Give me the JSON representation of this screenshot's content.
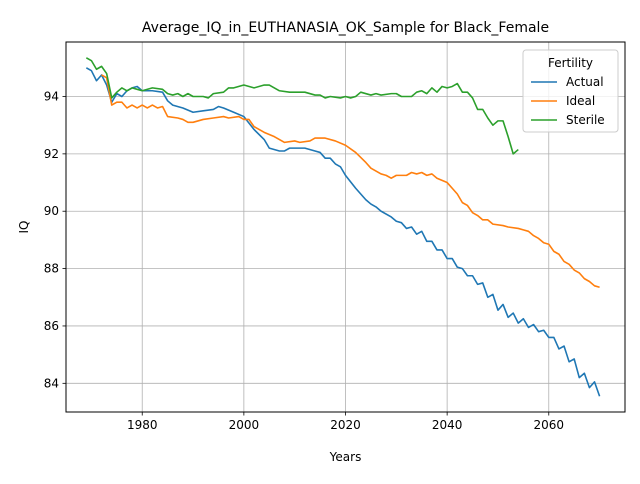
{
  "chart_data": {
    "type": "line",
    "title": "Average_IQ_in_EUTHANASIA_OK_Sample for Black_Female",
    "xlabel": "Years",
    "ylabel": "IQ",
    "xlim": [
      1965,
      2075
    ],
    "ylim": [
      83,
      95.9
    ],
    "xticks": [
      1980,
      2000,
      2020,
      2040,
      2060
    ],
    "yticks": [
      84,
      86,
      88,
      90,
      92,
      94
    ],
    "grid": true,
    "legend": {
      "title": "Fertility",
      "placement": "top-right"
    },
    "series": [
      {
        "name": "Actual",
        "color": "#1f77b4",
        "points": [
          [
            1969,
            95.0
          ],
          [
            1970,
            94.9
          ],
          [
            1971,
            94.55
          ],
          [
            1972,
            94.75
          ],
          [
            1973,
            94.4
          ],
          [
            1974,
            93.8
          ],
          [
            1975,
            94.1
          ],
          [
            1976,
            94.0
          ],
          [
            1977,
            94.2
          ],
          [
            1978,
            94.3
          ],
          [
            1979,
            94.35
          ],
          [
            1980,
            94.2
          ],
          [
            1982,
            94.2
          ],
          [
            1984,
            94.15
          ],
          [
            1985,
            93.85
          ],
          [
            1986,
            93.7
          ],
          [
            1988,
            93.6
          ],
          [
            1990,
            93.45
          ],
          [
            1992,
            93.5
          ],
          [
            1994,
            93.55
          ],
          [
            1995,
            93.65
          ],
          [
            1996,
            93.6
          ],
          [
            1998,
            93.45
          ],
          [
            2000,
            93.3
          ],
          [
            2002,
            92.85
          ],
          [
            2004,
            92.5
          ],
          [
            2005,
            92.2
          ],
          [
            2007,
            92.1
          ],
          [
            2008,
            92.1
          ],
          [
            2009,
            92.2
          ],
          [
            2012,
            92.2
          ],
          [
            2014,
            92.1
          ],
          [
            2015,
            92.05
          ],
          [
            2016,
            91.85
          ],
          [
            2017,
            91.85
          ],
          [
            2018,
            91.65
          ],
          [
            2019,
            91.55
          ],
          [
            2020,
            91.25
          ],
          [
            2022,
            90.8
          ],
          [
            2024,
            90.4
          ],
          [
            2025,
            90.25
          ],
          [
            2026,
            90.15
          ],
          [
            2027,
            90.0
          ],
          [
            2029,
            89.8
          ],
          [
            2030,
            89.65
          ],
          [
            2031,
            89.6
          ],
          [
            2032,
            89.4
          ],
          [
            2033,
            89.45
          ],
          [
            2034,
            89.2
          ],
          [
            2035,
            89.3
          ],
          [
            2036,
            88.95
          ],
          [
            2037,
            88.95
          ],
          [
            2038,
            88.65
          ],
          [
            2039,
            88.65
          ],
          [
            2040,
            88.35
          ],
          [
            2041,
            88.35
          ],
          [
            2042,
            88.05
          ],
          [
            2043,
            88.0
          ],
          [
            2044,
            87.75
          ],
          [
            2045,
            87.75
          ],
          [
            2046,
            87.45
          ],
          [
            2047,
            87.5
          ],
          [
            2048,
            87.0
          ],
          [
            2049,
            87.1
          ],
          [
            2050,
            86.55
          ],
          [
            2051,
            86.75
          ],
          [
            2052,
            86.3
          ],
          [
            2053,
            86.45
          ],
          [
            2054,
            86.1
          ],
          [
            2055,
            86.25
          ],
          [
            2056,
            85.95
          ],
          [
            2057,
            86.05
          ],
          [
            2058,
            85.8
          ],
          [
            2059,
            85.85
          ],
          [
            2060,
            85.6
          ],
          [
            2061,
            85.6
          ],
          [
            2062,
            85.2
          ],
          [
            2063,
            85.3
          ],
          [
            2064,
            84.75
          ],
          [
            2065,
            84.85
          ],
          [
            2066,
            84.2
          ],
          [
            2067,
            84.35
          ],
          [
            2068,
            83.85
          ],
          [
            2069,
            84.05
          ],
          [
            2070,
            83.55
          ]
        ]
      },
      {
        "name": "Ideal",
        "color": "#ff7f0e",
        "points": [
          [
            1972,
            94.75
          ],
          [
            1973,
            94.65
          ],
          [
            1974,
            93.7
          ],
          [
            1975,
            93.8
          ],
          [
            1976,
            93.8
          ],
          [
            1977,
            93.6
          ],
          [
            1978,
            93.7
          ],
          [
            1979,
            93.6
          ],
          [
            1980,
            93.7
          ],
          [
            1981,
            93.6
          ],
          [
            1982,
            93.7
          ],
          [
            1983,
            93.6
          ],
          [
            1984,
            93.65
          ],
          [
            1985,
            93.3
          ],
          [
            1987,
            93.25
          ],
          [
            1988,
            93.2
          ],
          [
            1989,
            93.1
          ],
          [
            1990,
            93.1
          ],
          [
            1992,
            93.2
          ],
          [
            1994,
            93.25
          ],
          [
            1996,
            93.3
          ],
          [
            1997,
            93.25
          ],
          [
            1999,
            93.3
          ],
          [
            2000,
            93.2
          ],
          [
            2001,
            93.2
          ],
          [
            2002,
            92.95
          ],
          [
            2004,
            92.75
          ],
          [
            2006,
            92.6
          ],
          [
            2007,
            92.5
          ],
          [
            2008,
            92.4
          ],
          [
            2010,
            92.45
          ],
          [
            2011,
            92.4
          ],
          [
            2013,
            92.45
          ],
          [
            2014,
            92.55
          ],
          [
            2016,
            92.55
          ],
          [
            2018,
            92.45
          ],
          [
            2020,
            92.3
          ],
          [
            2022,
            92.05
          ],
          [
            2024,
            91.7
          ],
          [
            2025,
            91.5
          ],
          [
            2027,
            91.3
          ],
          [
            2028,
            91.25
          ],
          [
            2029,
            91.15
          ],
          [
            2030,
            91.25
          ],
          [
            2032,
            91.25
          ],
          [
            2033,
            91.35
          ],
          [
            2034,
            91.3
          ],
          [
            2035,
            91.35
          ],
          [
            2036,
            91.25
          ],
          [
            2037,
            91.3
          ],
          [
            2038,
            91.15
          ],
          [
            2040,
            91.0
          ],
          [
            2041,
            90.8
          ],
          [
            2042,
            90.6
          ],
          [
            2043,
            90.3
          ],
          [
            2044,
            90.2
          ],
          [
            2045,
            89.95
          ],
          [
            2046,
            89.85
          ],
          [
            2047,
            89.7
          ],
          [
            2048,
            89.7
          ],
          [
            2049,
            89.55
          ],
          [
            2051,
            89.5
          ],
          [
            2052,
            89.45
          ],
          [
            2054,
            89.4
          ],
          [
            2055,
            89.35
          ],
          [
            2056,
            89.3
          ],
          [
            2057,
            89.15
          ],
          [
            2058,
            89.05
          ],
          [
            2059,
            88.9
          ],
          [
            2060,
            88.85
          ],
          [
            2061,
            88.6
          ],
          [
            2062,
            88.5
          ],
          [
            2063,
            88.25
          ],
          [
            2064,
            88.15
          ],
          [
            2065,
            87.95
          ],
          [
            2066,
            87.85
          ],
          [
            2067,
            87.65
          ],
          [
            2068,
            87.55
          ],
          [
            2069,
            87.4
          ],
          [
            2070,
            87.35
          ]
        ]
      },
      {
        "name": "Sterile",
        "color": "#2ca02c",
        "points": [
          [
            1969,
            95.35
          ],
          [
            1970,
            95.25
          ],
          [
            1971,
            94.95
          ],
          [
            1972,
            95.05
          ],
          [
            1973,
            94.8
          ],
          [
            1974,
            93.95
          ],
          [
            1975,
            94.15
          ],
          [
            1976,
            94.3
          ],
          [
            1977,
            94.2
          ],
          [
            1978,
            94.3
          ],
          [
            1979,
            94.25
          ],
          [
            1980,
            94.2
          ],
          [
            1982,
            94.3
          ],
          [
            1984,
            94.25
          ],
          [
            1985,
            94.1
          ],
          [
            1986,
            94.05
          ],
          [
            1987,
            94.1
          ],
          [
            1988,
            94.0
          ],
          [
            1989,
            94.1
          ],
          [
            1990,
            94.0
          ],
          [
            1992,
            94.0
          ],
          [
            1993,
            93.95
          ],
          [
            1994,
            94.1
          ],
          [
            1996,
            94.15
          ],
          [
            1997,
            94.3
          ],
          [
            1998,
            94.3
          ],
          [
            2000,
            94.4
          ],
          [
            2002,
            94.3
          ],
          [
            2004,
            94.4
          ],
          [
            2005,
            94.4
          ],
          [
            2007,
            94.2
          ],
          [
            2009,
            94.15
          ],
          [
            2012,
            94.15
          ],
          [
            2014,
            94.05
          ],
          [
            2015,
            94.05
          ],
          [
            2016,
            93.95
          ],
          [
            2017,
            94.0
          ],
          [
            2019,
            93.95
          ],
          [
            2020,
            94.0
          ],
          [
            2021,
            93.95
          ],
          [
            2022,
            94.0
          ],
          [
            2023,
            94.15
          ],
          [
            2025,
            94.05
          ],
          [
            2026,
            94.1
          ],
          [
            2027,
            94.05
          ],
          [
            2029,
            94.1
          ],
          [
            2030,
            94.1
          ],
          [
            2031,
            94.0
          ],
          [
            2032,
            94.0
          ],
          [
            2033,
            94.0
          ],
          [
            2034,
            94.15
          ],
          [
            2035,
            94.2
          ],
          [
            2036,
            94.1
          ],
          [
            2037,
            94.3
          ],
          [
            2038,
            94.15
          ],
          [
            2039,
            94.35
          ],
          [
            2040,
            94.3
          ],
          [
            2041,
            94.35
          ],
          [
            2042,
            94.45
          ],
          [
            2043,
            94.15
          ],
          [
            2044,
            94.15
          ],
          [
            2045,
            93.95
          ],
          [
            2046,
            93.55
          ],
          [
            2047,
            93.55
          ],
          [
            2048,
            93.25
          ],
          [
            2049,
            93.0
          ],
          [
            2050,
            93.15
          ],
          [
            2051,
            93.15
          ],
          [
            2052,
            92.6
          ],
          [
            2053,
            92.0
          ],
          [
            2054,
            92.15
          ]
        ]
      }
    ]
  }
}
